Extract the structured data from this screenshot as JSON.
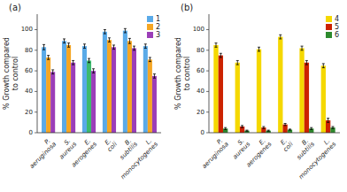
{
  "chart_data": [
    {
      "type": "bar",
      "title": "(a)",
      "categories": [
        "P. aeruginosa",
        "S. aureus",
        "E. aerogenes",
        "E. coli",
        "B. subtilis",
        "L. monocytogenes"
      ],
      "series": [
        {
          "name": "1",
          "color": "#5aaae8",
          "values": [
            83,
            89,
            84,
            98,
            99,
            84
          ],
          "errors": [
            2.5,
            2,
            2,
            2,
            2,
            2
          ]
        },
        {
          "name": "2",
          "color": "#f5a623",
          "colors": [
            "#f5a623",
            "#f5a623",
            "#3dba6e",
            "#f5a623",
            "#f5a623",
            "#f5a623"
          ],
          "values": [
            73,
            85,
            70,
            90,
            89,
            71
          ],
          "errors": [
            2,
            2,
            2,
            2,
            2.5,
            2
          ]
        },
        {
          "name": "3",
          "color": "#9b3eb8",
          "values": [
            59,
            68,
            60,
            83,
            82,
            55
          ],
          "errors": [
            2,
            2,
            2,
            2,
            2,
            2
          ]
        }
      ],
      "ylabel": "% Growth compared\nto control",
      "ylim": [
        0,
        115
      ],
      "yticks": [
        0,
        20,
        40,
        60,
        80,
        100
      ],
      "grid": false,
      "legend": "upper right"
    },
    {
      "type": "bar",
      "title": "(b)",
      "categories": [
        "P. aeruginosa",
        "S. aureus",
        "E. aerogenes",
        "E. coli",
        "B. subtilis",
        "L. monocytogenes"
      ],
      "series": [
        {
          "name": "4",
          "color": "#f5d800",
          "values": [
            85,
            68,
            81,
            93,
            82,
            65
          ],
          "errors": [
            2,
            2,
            2,
            2,
            2,
            2
          ]
        },
        {
          "name": "5",
          "color": "#cc2200",
          "values": [
            75,
            6,
            5,
            8,
            68,
            12
          ],
          "errors": [
            2,
            1,
            1,
            1,
            2,
            2
          ]
        },
        {
          "name": "6",
          "color": "#2d8a2d",
          "values": [
            4,
            2,
            2,
            3,
            4,
            5
          ],
          "errors": [
            1,
            0.5,
            0.5,
            0.5,
            1,
            1
          ]
        }
      ],
      "ylabel": "% Growth compared\nto control",
      "ylim": [
        0,
        115
      ],
      "yticks": [
        0,
        20,
        40,
        60,
        80,
        100
      ],
      "grid": false,
      "legend": "upper right"
    }
  ]
}
